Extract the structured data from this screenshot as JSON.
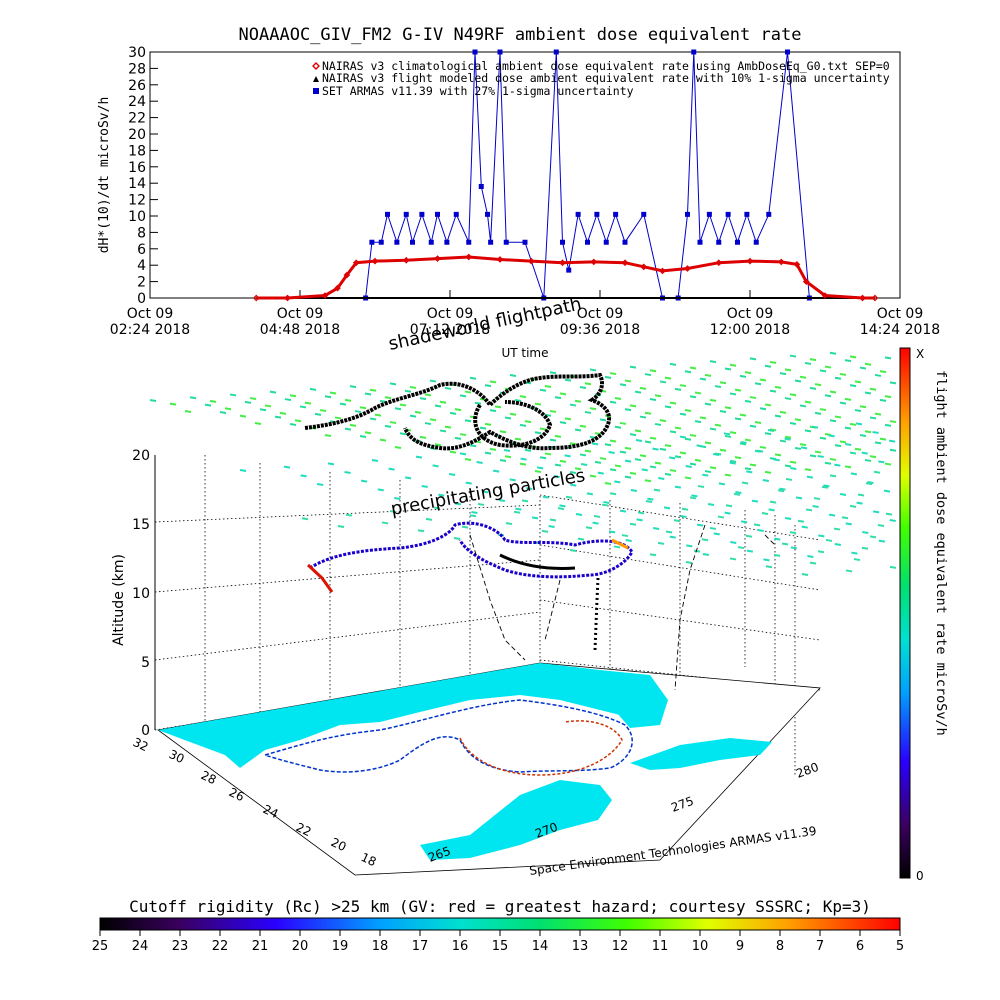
{
  "chart_data": [
    {
      "type": "line",
      "title": "NOAAAOC_GIV_FM2 G-IV    N49RF  ambient dose equivalent rate",
      "ylabel": "dH*(10)/dt microSv/h",
      "xlabel": "UT time",
      "ylim": [
        0,
        30
      ],
      "yticks": [
        "0",
        "2",
        "4",
        "6",
        "8",
        "10",
        "12",
        "14",
        "16",
        "18",
        "20",
        "22",
        "24",
        "26",
        "28",
        "30"
      ],
      "xticks": [
        {
          "line1": "Oct 09",
          "line2": "02:24 2018"
        },
        {
          "line1": "Oct 09",
          "line2": "04:48 2018"
        },
        {
          "line1": "Oct 09",
          "line2": "07:12 2018"
        },
        {
          "line1": "Oct 09",
          "line2": "09:36 2018"
        },
        {
          "line1": "Oct 09",
          "line2": "12:00 2018"
        },
        {
          "line1": "Oct 09",
          "line2": "14:24 2018"
        }
      ],
      "x_hours_range": [
        2.4,
        14.4
      ],
      "legend_position": "top-right",
      "legend": [
        {
          "marker": "diamond",
          "color": "#dd0000",
          "label": "NAIRAS v3 climatological ambient dose equivalent rate using AmbDoseEq_G0.txt SEP=0"
        },
        {
          "marker": "triangle",
          "color": "#000000",
          "label": "NAIRAS v3 flight modeled dose ambient equivalent rate with 10% 1-sigma uncertainty"
        },
        {
          "marker": "square",
          "color": "#0000cc",
          "label": "SET ARMAS v11.39 with 27% 1-sigma uncertainty"
        }
      ],
      "series": [
        {
          "name": "NAIRAS v3 climatological ambient dose equivalent rate using AmbDoseEq_G0.txt SEP=0",
          "color": "#dd0000",
          "x_hours": [
            4.1,
            4.6,
            5.2,
            5.4,
            5.55,
            5.7,
            6.0,
            6.5,
            7.0,
            7.5,
            8.0,
            8.5,
            9.0,
            9.5,
            10.0,
            10.3,
            10.6,
            11.0,
            11.5,
            12.0,
            12.5,
            12.75,
            12.9,
            13.2,
            13.8,
            14.0
          ],
          "values": [
            0,
            0,
            0.3,
            1.2,
            2.8,
            4.3,
            4.5,
            4.6,
            4.8,
            5.0,
            4.7,
            4.5,
            4.3,
            4.4,
            4.3,
            3.8,
            3.3,
            3.6,
            4.3,
            4.5,
            4.4,
            4.1,
            2.0,
            0.3,
            0,
            0
          ]
        },
        {
          "name": "NAIRAS v3 flight modeled dose ambient equivalent rate with 10% 1-sigma uncertainty",
          "color": "#000000",
          "x_hours": [
            4.1,
            5.0,
            6.0,
            7.0,
            8.0,
            9.0,
            10.0,
            11.0,
            12.0,
            13.0,
            14.0
          ],
          "values": [
            0,
            0,
            0,
            0,
            0,
            0,
            0,
            0,
            0,
            0,
            0
          ]
        },
        {
          "name": "SET ARMAS v11.39 with 27% 1-sigma uncertainty",
          "color": "#0000cc",
          "x_hours": [
            5.85,
            5.95,
            6.1,
            6.2,
            6.35,
            6.5,
            6.6,
            6.75,
            6.9,
            7.0,
            7.15,
            7.3,
            7.5,
            7.6,
            7.7,
            7.8,
            7.85,
            8.0,
            8.1,
            8.4,
            8.7,
            8.9,
            9.0,
            9.1,
            9.25,
            9.4,
            9.55,
            9.7,
            9.85,
            10.0,
            10.3,
            10.6,
            10.85,
            11.0,
            11.1,
            11.2,
            11.35,
            11.5,
            11.65,
            11.8,
            11.95,
            12.1,
            12.3,
            12.6,
            12.95
          ],
          "values": [
            0,
            6.8,
            6.8,
            10.2,
            6.8,
            10.2,
            6.8,
            10.2,
            6.8,
            10.2,
            6.8,
            10.2,
            6.8,
            30,
            13.6,
            10.2,
            6.8,
            30,
            6.8,
            6.8,
            0,
            30,
            6.8,
            3.4,
            10.2,
            6.8,
            10.2,
            6.8,
            10.2,
            6.8,
            10.2,
            0,
            0,
            10.2,
            30,
            6.8,
            10.2,
            6.8,
            10.2,
            6.8,
            10.2,
            6.8,
            10.2,
            30,
            0
          ]
        }
      ]
    },
    {
      "type": "scatter",
      "subtype": "3d-flight-track",
      "title": "shadeworld flightpath",
      "zlabel": "Altitude (km)",
      "zticks": [
        "0",
        "5",
        "10",
        "15",
        "20"
      ],
      "latitude_ticks": [
        "32",
        "30",
        "28",
        "26",
        "24",
        "22",
        "20",
        "18"
      ],
      "longitude_ticks": [
        "265",
        "270",
        "275",
        "280"
      ],
      "annotations": [
        "precipitating particles",
        "Space Environment Technologies ARMAS v11.39",
        "shadeworld flightpath"
      ],
      "colorbar": {
        "label": "flight ambient dose equivalent rate microSv/h",
        "top_label": "X",
        "bottom_label": "0",
        "scale": "rainbow, black at 0 to red at X"
      }
    },
    {
      "type": "heatmap",
      "subtype": "colorbar",
      "title": "Cutoff rigidity (Rc) >25 km (GV: red = greatest hazard; courtesy SSSRC; Kp=3)",
      "tick_labels": [
        "25",
        "24",
        "23",
        "22",
        "21",
        "20",
        "19",
        "18",
        "17",
        "16",
        "15",
        "14",
        "13",
        "12",
        "11",
        "10",
        "9",
        "8",
        "7",
        "6",
        "5"
      ]
    }
  ]
}
